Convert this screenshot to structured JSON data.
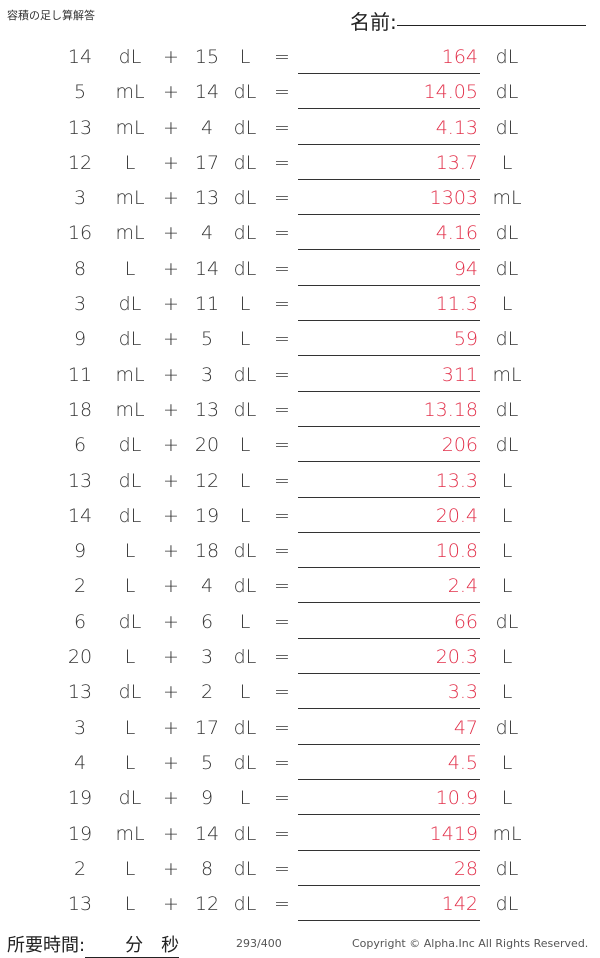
{
  "header": {
    "title": "容積の足し算解答",
    "name_label": "名前:"
  },
  "problems": [
    {
      "a": "14",
      "a_unit": "dL",
      "op": "+",
      "b": "15",
      "b_unit": "L",
      "eq": "=",
      "answer": "164",
      "answer_unit": "dL"
    },
    {
      "a": "5",
      "a_unit": "mL",
      "op": "+",
      "b": "14",
      "b_unit": "dL",
      "eq": "=",
      "answer": "14.05",
      "answer_unit": "dL"
    },
    {
      "a": "13",
      "a_unit": "mL",
      "op": "+",
      "b": "4",
      "b_unit": "dL",
      "eq": "=",
      "answer": "4.13",
      "answer_unit": "dL"
    },
    {
      "a": "12",
      "a_unit": "L",
      "op": "+",
      "b": "17",
      "b_unit": "dL",
      "eq": "=",
      "answer": "13.7",
      "answer_unit": "L"
    },
    {
      "a": "3",
      "a_unit": "mL",
      "op": "+",
      "b": "13",
      "b_unit": "dL",
      "eq": "=",
      "answer": "1303",
      "answer_unit": "mL"
    },
    {
      "a": "16",
      "a_unit": "mL",
      "op": "+",
      "b": "4",
      "b_unit": "dL",
      "eq": "=",
      "answer": "4.16",
      "answer_unit": "dL"
    },
    {
      "a": "8",
      "a_unit": "L",
      "op": "+",
      "b": "14",
      "b_unit": "dL",
      "eq": "=",
      "answer": "94",
      "answer_unit": "dL"
    },
    {
      "a": "3",
      "a_unit": "dL",
      "op": "+",
      "b": "11",
      "b_unit": "L",
      "eq": "=",
      "answer": "11.3",
      "answer_unit": "L"
    },
    {
      "a": "9",
      "a_unit": "dL",
      "op": "+",
      "b": "5",
      "b_unit": "L",
      "eq": "=",
      "answer": "59",
      "answer_unit": "dL"
    },
    {
      "a": "11",
      "a_unit": "mL",
      "op": "+",
      "b": "3",
      "b_unit": "dL",
      "eq": "=",
      "answer": "311",
      "answer_unit": "mL"
    },
    {
      "a": "18",
      "a_unit": "mL",
      "op": "+",
      "b": "13",
      "b_unit": "dL",
      "eq": "=",
      "answer": "13.18",
      "answer_unit": "dL"
    },
    {
      "a": "6",
      "a_unit": "dL",
      "op": "+",
      "b": "20",
      "b_unit": "L",
      "eq": "=",
      "answer": "206",
      "answer_unit": "dL"
    },
    {
      "a": "13",
      "a_unit": "dL",
      "op": "+",
      "b": "12",
      "b_unit": "L",
      "eq": "=",
      "answer": "13.3",
      "answer_unit": "L"
    },
    {
      "a": "14",
      "a_unit": "dL",
      "op": "+",
      "b": "19",
      "b_unit": "L",
      "eq": "=",
      "answer": "20.4",
      "answer_unit": "L"
    },
    {
      "a": "9",
      "a_unit": "L",
      "op": "+",
      "b": "18",
      "b_unit": "dL",
      "eq": "=",
      "answer": "10.8",
      "answer_unit": "L"
    },
    {
      "a": "2",
      "a_unit": "L",
      "op": "+",
      "b": "4",
      "b_unit": "dL",
      "eq": "=",
      "answer": "2.4",
      "answer_unit": "L"
    },
    {
      "a": "6",
      "a_unit": "dL",
      "op": "+",
      "b": "6",
      "b_unit": "L",
      "eq": "=",
      "answer": "66",
      "answer_unit": "dL"
    },
    {
      "a": "20",
      "a_unit": "L",
      "op": "+",
      "b": "3",
      "b_unit": "dL",
      "eq": "=",
      "answer": "20.3",
      "answer_unit": "L"
    },
    {
      "a": "13",
      "a_unit": "dL",
      "op": "+",
      "b": "2",
      "b_unit": "L",
      "eq": "=",
      "answer": "3.3",
      "answer_unit": "L"
    },
    {
      "a": "3",
      "a_unit": "L",
      "op": "+",
      "b": "17",
      "b_unit": "dL",
      "eq": "=",
      "answer": "47",
      "answer_unit": "dL"
    },
    {
      "a": "4",
      "a_unit": "L",
      "op": "+",
      "b": "5",
      "b_unit": "dL",
      "eq": "=",
      "answer": "4.5",
      "answer_unit": "L"
    },
    {
      "a": "19",
      "a_unit": "dL",
      "op": "+",
      "b": "9",
      "b_unit": "L",
      "eq": "=",
      "answer": "10.9",
      "answer_unit": "L"
    },
    {
      "a": "19",
      "a_unit": "mL",
      "op": "+",
      "b": "14",
      "b_unit": "dL",
      "eq": "=",
      "answer": "1419",
      "answer_unit": "mL"
    },
    {
      "a": "2",
      "a_unit": "L",
      "op": "+",
      "b": "8",
      "b_unit": "dL",
      "eq": "=",
      "answer": "28",
      "answer_unit": "dL"
    },
    {
      "a": "13",
      "a_unit": "L",
      "op": "+",
      "b": "12",
      "b_unit": "dL",
      "eq": "=",
      "answer": "142",
      "answer_unit": "dL"
    }
  ],
  "footer": {
    "time_label": "所要時間:",
    "minutes_label": "分",
    "seconds_label": "秒",
    "page": "293/400",
    "copyright": "Copyright © Alpha.Inc All Rights Reserved."
  },
  "colors": {
    "answer": "#e2304a",
    "text": "#333333"
  }
}
